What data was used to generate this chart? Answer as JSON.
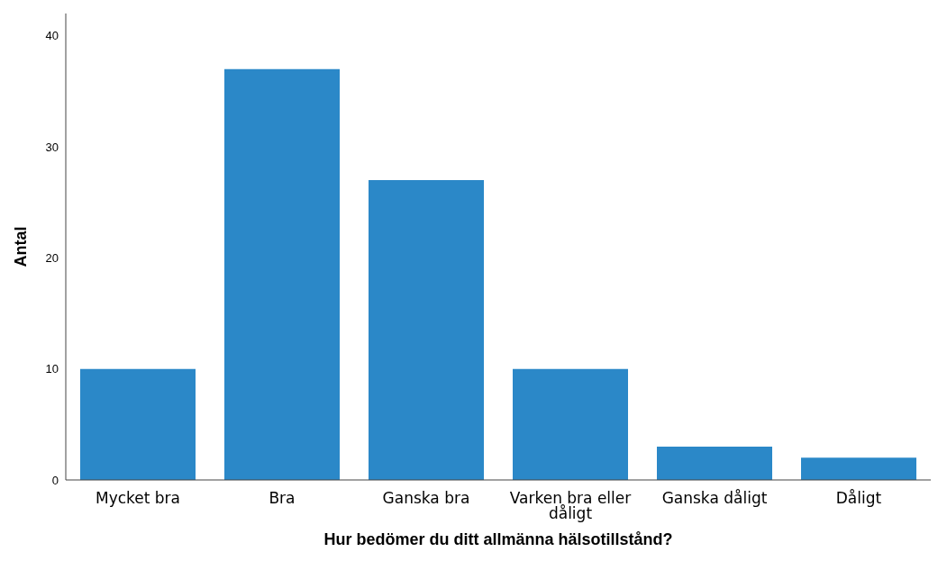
{
  "chart_data": {
    "type": "bar",
    "xlabel": "Hur bedömer du ditt allmänna hälsotillstånd?",
    "ylabel": "Antal",
    "categories": [
      "Mycket bra",
      "Bra",
      "Ganska bra",
      "Varken bra eller dåligt",
      "Ganska dåligt",
      "Dåligt"
    ],
    "values": [
      10,
      37,
      27,
      10,
      3,
      2
    ],
    "color": "#2b88c8",
    "ylim": [
      0,
      42
    ],
    "yticks": [
      0,
      10,
      20,
      30,
      40
    ],
    "grid": false,
    "legend": false
  }
}
